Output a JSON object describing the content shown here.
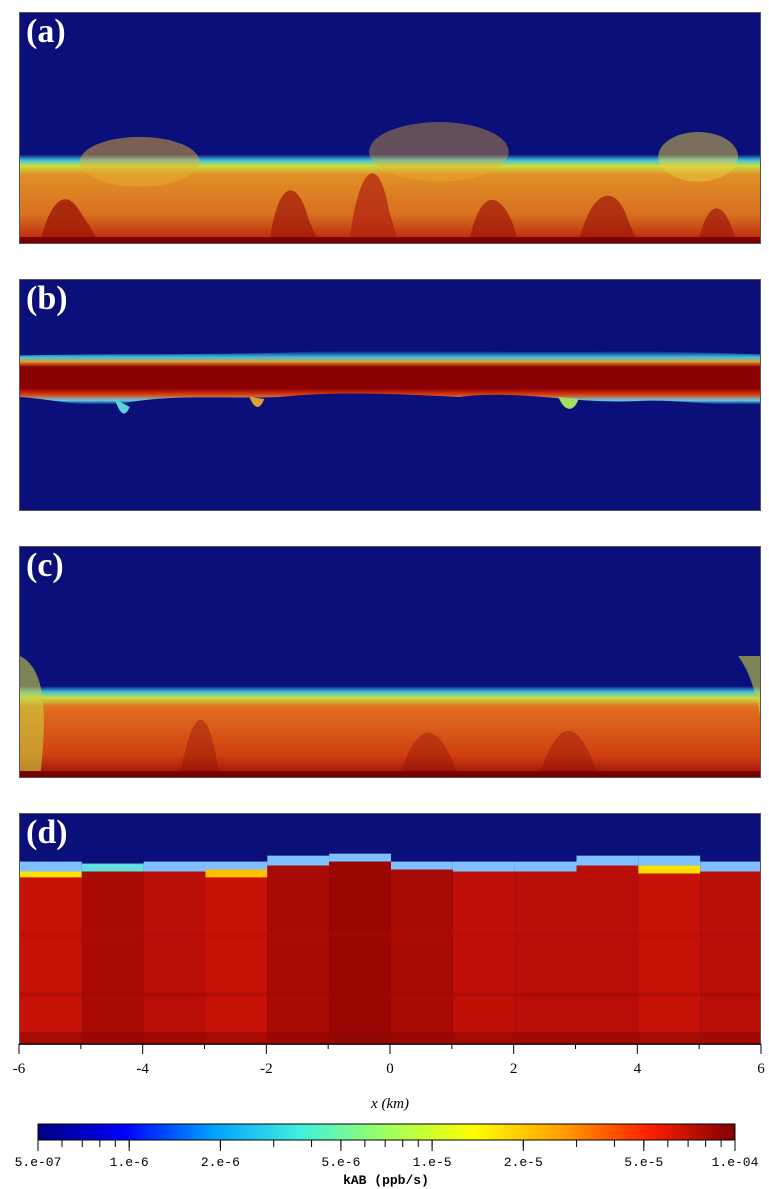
{
  "panels": [
    {
      "label": "(a)"
    },
    {
      "label": "(b)"
    },
    {
      "label": "(c)"
    },
    {
      "label": "(d)"
    }
  ],
  "x_axis": {
    "ticks": [
      "-6",
      "-4",
      "-2",
      "0",
      "2",
      "4",
      "6"
    ],
    "label": "x (km)",
    "range": [
      -6,
      6
    ]
  },
  "colorbar": {
    "label": "kAB (ppb/s)",
    "scale": "log",
    "range": [
      5e-07,
      0.0001
    ],
    "ticks": [
      "5.e-07",
      "1.e-6",
      "2.e-6",
      "5.e-6",
      "1.e-5",
      "2.e-5",
      "5.e-5",
      "1.e-04"
    ],
    "colormap": [
      "#000080",
      "#0000ff",
      "#00a0ff",
      "#40f0e0",
      "#a0ff60",
      "#ffff00",
      "#ffa000",
      "#ff2000",
      "#800000"
    ]
  },
  "colors": {
    "background_low": "#0a0f7a",
    "high": "#8b0000"
  }
}
